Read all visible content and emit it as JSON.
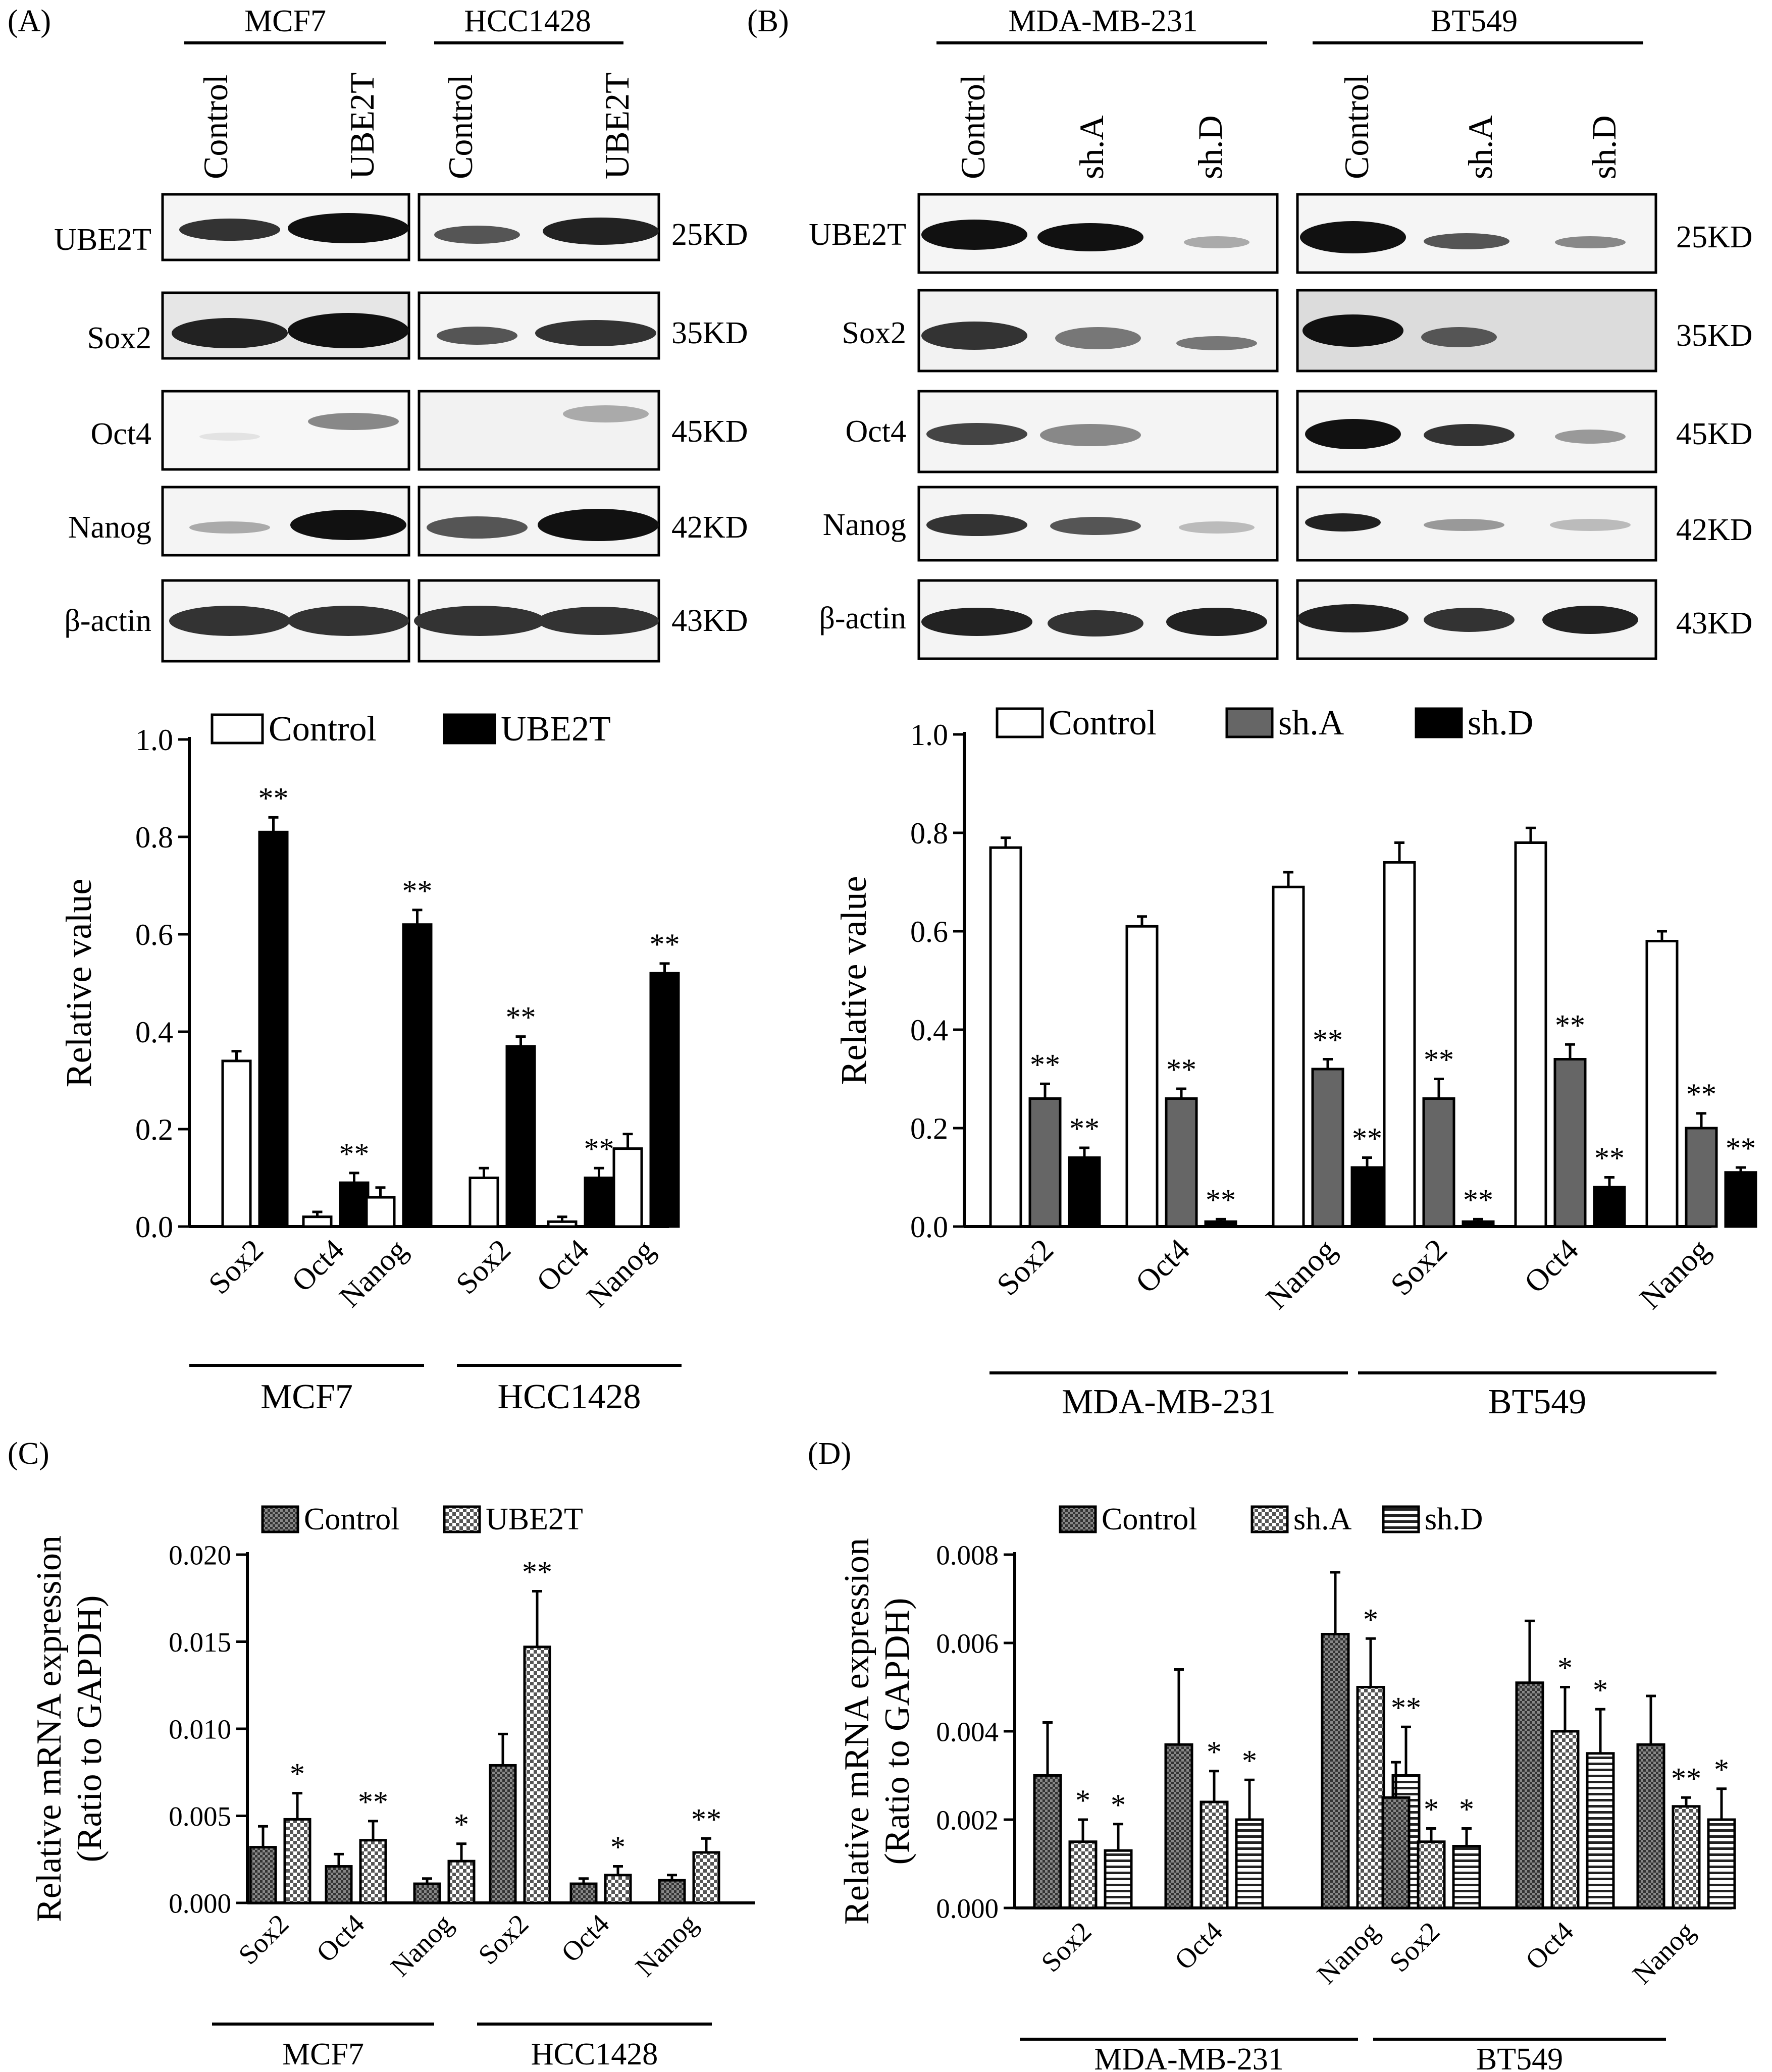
{
  "panels": {
    "a": {
      "letter": "(A)",
      "blot": {
        "groups": [
          "MCF7",
          "HCC1428"
        ],
        "lanes": [
          "Control",
          "UBE2T",
          "Control",
          "UBE2T"
        ],
        "rows": [
          "UBE2T",
          "Sox2",
          "Oct4",
          "Nanog",
          "β-actin"
        ],
        "mw": [
          "25KD",
          "35KD",
          "45KD",
          "42KD",
          "43KD"
        ]
      }
    },
    "b": {
      "letter": "(B)",
      "blot": {
        "groups": [
          "MDA-MB-231",
          "BT549"
        ],
        "lanes": [
          "Control",
          "sh.A",
          "sh.D",
          "Control",
          "sh.A",
          "sh.D"
        ],
        "rows": [
          "UBE2T",
          "Sox2",
          "Oct4",
          "Nanog",
          "β-actin"
        ],
        "mw": [
          "25KD",
          "35KD",
          "45KD",
          "42KD",
          "43KD"
        ]
      }
    },
    "c": {
      "letter": "(C)"
    },
    "d": {
      "letter": "(D)"
    }
  },
  "chart_data": [
    {
      "id": "a",
      "type": "bar",
      "ylabel": "Relative value",
      "ylim": [
        0,
        1.0
      ],
      "yticks": [
        "0.0",
        "0.2",
        "0.4",
        "0.6",
        "0.8",
        "1.0"
      ],
      "groups": [
        "MCF7",
        "HCC1428"
      ],
      "categories": [
        "Sox2",
        "Oct4",
        "Nanog",
        "Sox2",
        "Oct4",
        "Nanog"
      ],
      "series": [
        {
          "name": "Control",
          "fill": "#ffffff",
          "values": [
            0.34,
            0.02,
            0.06,
            0.1,
            0.01,
            0.16
          ],
          "errors": [
            0.02,
            0.01,
            0.02,
            0.02,
            0.01,
            0.03
          ],
          "sig": [
            "",
            "",
            "",
            "",
            "",
            ""
          ]
        },
        {
          "name": "UBE2T",
          "fill": "#000000",
          "values": [
            0.81,
            0.09,
            0.62,
            0.37,
            0.1,
            0.52
          ],
          "errors": [
            0.03,
            0.02,
            0.03,
            0.02,
            0.02,
            0.02
          ],
          "sig": [
            "**",
            "**",
            "**",
            "**",
            "**",
            "**"
          ]
        }
      ]
    },
    {
      "id": "b",
      "type": "bar",
      "ylabel": "Relative value",
      "ylim": [
        0,
        1.0
      ],
      "yticks": [
        "0.0",
        "0.2",
        "0.4",
        "0.6",
        "0.8",
        "1.0"
      ],
      "groups": [
        "MDA-MB-231",
        "BT549"
      ],
      "categories": [
        "Sox2",
        "Oct4",
        "Nanog",
        "Sox2",
        "Oct4",
        "Nanog"
      ],
      "series": [
        {
          "name": "Control",
          "fill": "#ffffff",
          "values": [
            0.77,
            0.61,
            0.69,
            0.74,
            0.78,
            0.58
          ],
          "errors": [
            0.02,
            0.02,
            0.03,
            0.04,
            0.03,
            0.02
          ],
          "sig": [
            "",
            "",
            "",
            "",
            "",
            ""
          ]
        },
        {
          "name": "sh.A",
          "fill": "#666666",
          "values": [
            0.26,
            0.26,
            0.32,
            0.26,
            0.34,
            0.2
          ],
          "errors": [
            0.03,
            0.02,
            0.02,
            0.04,
            0.03,
            0.03
          ],
          "sig": [
            "**",
            "**",
            "**",
            "**",
            "**",
            "**"
          ]
        },
        {
          "name": "sh.D",
          "fill": "#000000",
          "values": [
            0.14,
            0.01,
            0.12,
            0.01,
            0.08,
            0.11
          ],
          "errors": [
            0.02,
            0.005,
            0.02,
            0.005,
            0.02,
            0.01
          ],
          "sig": [
            "**",
            "**",
            "**",
            "**",
            "**",
            "**"
          ]
        }
      ]
    },
    {
      "id": "c",
      "type": "bar",
      "ylabel": "Relative mRNA expression",
      "ylabel2": "(Ratio to GAPDH)",
      "ylim": [
        0,
        0.02
      ],
      "yticks": [
        "0.000",
        "0.005",
        "0.010",
        "0.015",
        "0.020"
      ],
      "groups": [
        "MCF7",
        "HCC1428"
      ],
      "categories": [
        "Sox2",
        "Oct4",
        "Nanog",
        "Sox2",
        "Oct4",
        "Nanog"
      ],
      "series": [
        {
          "name": "Control",
          "fill": "url(#pat-dense)",
          "values": [
            0.0032,
            0.0021,
            0.0011,
            0.0079,
            0.0011,
            0.0013
          ],
          "errors": [
            0.0012,
            0.0007,
            0.0003,
            0.0018,
            0.0003,
            0.0003
          ],
          "sig": [
            "",
            "",
            "",
            "",
            "",
            ""
          ]
        },
        {
          "name": "UBE2T",
          "fill": "url(#pat-check)",
          "values": [
            0.0048,
            0.0036,
            0.0024,
            0.0147,
            0.0016,
            0.0029
          ],
          "errors": [
            0.0015,
            0.0011,
            0.001,
            0.0032,
            0.0005,
            0.0008
          ],
          "sig": [
            "*",
            "**",
            "*",
            "**",
            "*",
            "**"
          ]
        }
      ]
    },
    {
      "id": "d",
      "type": "bar",
      "ylabel": "Relative mRNA expression",
      "ylabel2": "(Ratio to GAPDH)",
      "ylim": [
        0,
        0.008
      ],
      "yticks": [
        "0.000",
        "0.002",
        "0.004",
        "0.006",
        "0.008"
      ],
      "groups": [
        "MDA-MB-231",
        "BT549"
      ],
      "categories": [
        "Sox2",
        "Oct4",
        "Nanog",
        "Sox2",
        "Oct4",
        "Nanog"
      ],
      "series": [
        {
          "name": "Control",
          "fill": "url(#pat-dense)",
          "values": [
            0.003,
            0.0037,
            0.0062,
            0.0025,
            0.0051,
            0.0037
          ],
          "errors": [
            0.0012,
            0.0017,
            0.0014,
            0.0008,
            0.0014,
            0.0011
          ],
          "sig": [
            "",
            "",
            "",
            "",
            "",
            ""
          ]
        },
        {
          "name": "sh.A",
          "fill": "url(#pat-check)",
          "values": [
            0.0015,
            0.0024,
            0.005,
            0.0015,
            0.004,
            0.0023
          ],
          "errors": [
            0.0005,
            0.0007,
            0.0011,
            0.0003,
            0.001,
            0.0002
          ],
          "sig": [
            "*",
            "*",
            "*",
            "*",
            "*",
            "**"
          ]
        },
        {
          "name": "sh.D",
          "fill": "url(#pat-horiz)",
          "values": [
            0.0013,
            0.002,
            0.003,
            0.0014,
            0.0035,
            0.002
          ],
          "errors": [
            0.0006,
            0.0009,
            0.0011,
            0.0004,
            0.001,
            0.0007
          ],
          "sig": [
            "*",
            "*",
            "**",
            "*",
            "*",
            "*"
          ]
        }
      ]
    }
  ]
}
